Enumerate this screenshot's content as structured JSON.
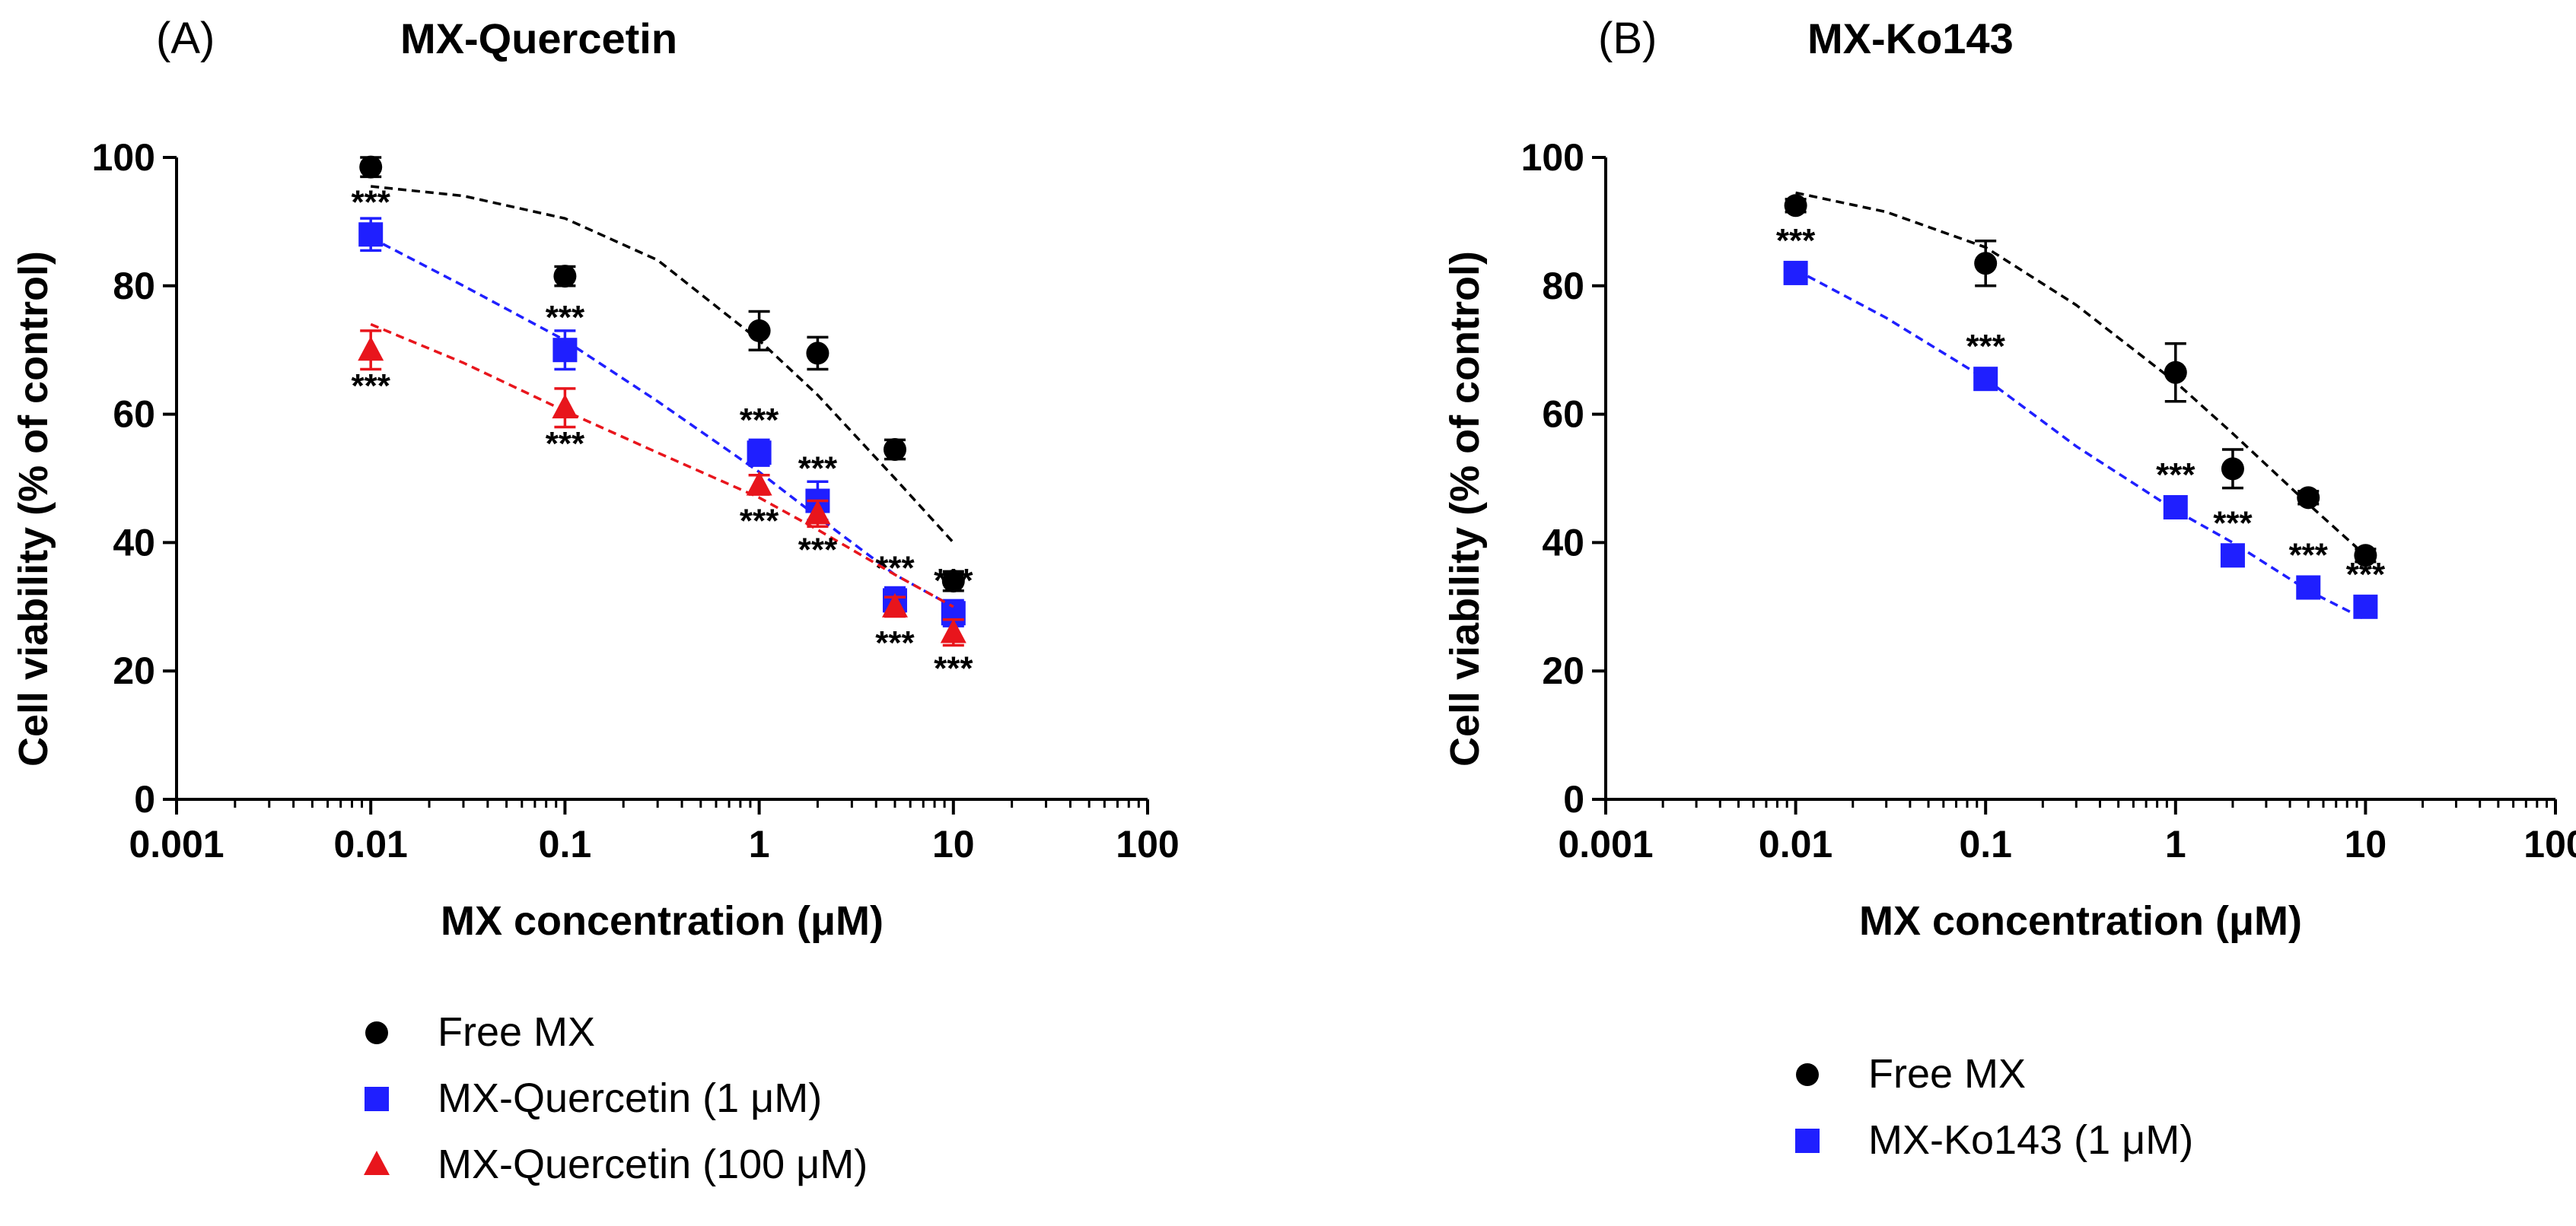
{
  "chart_data": [
    {
      "type": "scatter",
      "panel_label": "(A)",
      "title": "MX-Quercetin",
      "xlabel": "MX concentration (μM)",
      "ylabel": "Cell viability (% of control)",
      "xscale": "log",
      "xlim": [
        0.001,
        100
      ],
      "ylim": [
        0,
        100
      ],
      "xticks": [
        "0.001",
        "0.01",
        "0.1",
        "1",
        "10",
        "100"
      ],
      "xtick_values": [
        0.001,
        0.01,
        0.1,
        1,
        10,
        100
      ],
      "yticks": [
        0,
        20,
        40,
        60,
        80,
        100
      ],
      "legend_position": "bottom",
      "significance_label": "***",
      "series": [
        {
          "name": "Free MX",
          "marker": "circle",
          "color": "#000000",
          "x": [
            0.01,
            0.1,
            1,
            2,
            5,
            10
          ],
          "y": [
            98.5,
            81.5,
            73,
            69.5,
            54.5,
            34
          ],
          "err": [
            1.5,
            1.5,
            3,
            2.5,
            1.5,
            1.5
          ],
          "fit_x": [
            0.01,
            0.03,
            0.1,
            0.3,
            1,
            2,
            5,
            10
          ],
          "fit_y": [
            95.5,
            94,
            90.5,
            84,
            71.5,
            63,
            50,
            40
          ],
          "stars": []
        },
        {
          "name": "MX-Quercetin (1 μM)",
          "marker": "square",
          "color": "#1f1fff",
          "x": [
            0.01,
            0.1,
            1,
            2,
            5,
            10
          ],
          "y": [
            88,
            70,
            54,
            46.5,
            31,
            29
          ],
          "err": [
            2.5,
            3,
            2,
            3,
            2,
            2
          ],
          "fit_x": [
            0.01,
            0.03,
            0.1,
            0.3,
            1,
            2,
            5,
            10
          ],
          "fit_y": [
            87.5,
            80,
            71.5,
            62,
            51,
            44,
            35,
            30
          ],
          "stars": [
            "above",
            "above",
            "above",
            "above",
            "above",
            "above"
          ]
        },
        {
          "name": "MX-Quercetin (100 μM)",
          "marker": "triangle",
          "color": "#e8151c",
          "x": [
            0.01,
            0.1,
            1,
            2,
            5,
            10
          ],
          "y": [
            70,
            61,
            49,
            44.5,
            30,
            26
          ],
          "err": [
            3,
            3,
            1.5,
            2,
            1.5,
            2
          ],
          "fit_x": [
            0.01,
            0.03,
            0.1,
            0.3,
            1,
            2,
            5,
            10
          ],
          "fit_y": [
            74,
            68,
            60.5,
            54,
            47,
            42,
            35,
            30
          ],
          "stars": [
            "below",
            "below",
            "below",
            "below",
            "below",
            "below"
          ]
        }
      ]
    },
    {
      "type": "scatter",
      "panel_label": "(B)",
      "title": "MX-Ko143",
      "xlabel": "MX concentration (μM)",
      "ylabel": "Cell viability (% of control)",
      "xscale": "log",
      "xlim": [
        0.001,
        100
      ],
      "ylim": [
        0,
        100
      ],
      "xticks": [
        "0.001",
        "0.01",
        "0.1",
        "1",
        "10",
        "100"
      ],
      "xtick_values": [
        0.001,
        0.01,
        0.1,
        1,
        10,
        100
      ],
      "yticks": [
        0,
        20,
        40,
        60,
        80,
        100
      ],
      "legend_position": "bottom",
      "significance_label": "***",
      "series": [
        {
          "name": "Free MX",
          "marker": "circle",
          "color": "#000000",
          "x": [
            0.01,
            0.1,
            1,
            2,
            5,
            10
          ],
          "y": [
            92.5,
            83.5,
            66.5,
            51.5,
            47,
            38
          ],
          "err": [
            1,
            3.5,
            4.5,
            3,
            1,
            1
          ],
          "fit_x": [
            0.01,
            0.03,
            0.1,
            0.3,
            1,
            2,
            5,
            10
          ],
          "fit_y": [
            94.5,
            91.5,
            86,
            77,
            65,
            57,
            46,
            38
          ],
          "stars": []
        },
        {
          "name": "MX-Ko143 (1 μM)",
          "marker": "square",
          "color": "#1f1fff",
          "x": [
            0.01,
            0.1,
            1,
            2,
            5,
            10
          ],
          "y": [
            82,
            65.5,
            45.5,
            38,
            33,
            30
          ],
          "err": [
            1,
            1.5,
            1.5,
            1.5,
            1,
            1
          ],
          "fit_x": [
            0.01,
            0.03,
            0.1,
            0.3,
            1,
            2,
            5,
            10
          ],
          "fit_y": [
            82.5,
            75,
            65.5,
            55,
            45,
            40,
            32.5,
            28
          ],
          "stars": [
            "above",
            "above",
            "above",
            "above",
            "above",
            "above"
          ]
        }
      ]
    }
  ]
}
